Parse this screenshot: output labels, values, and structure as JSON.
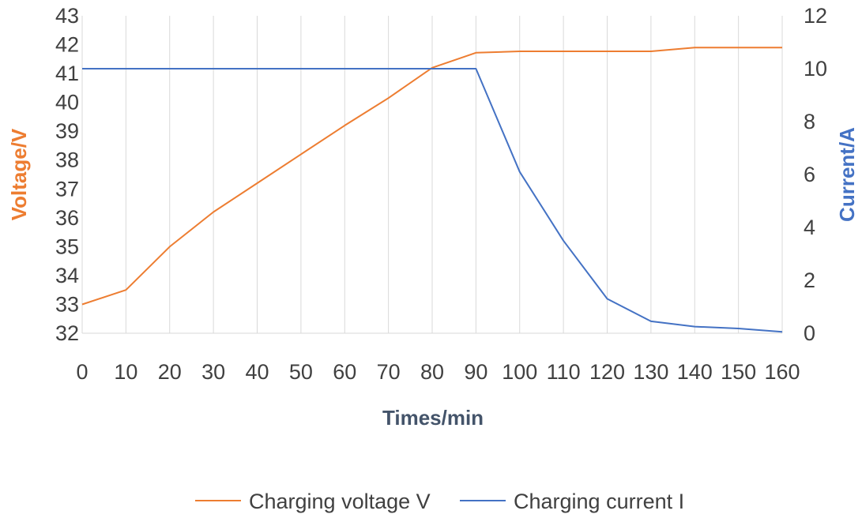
{
  "chart_data": {
    "type": "line",
    "xlabel": "Times/min",
    "ylabel_left": "Voltage/V",
    "ylabel_right": "Current/A",
    "x": [
      0,
      10,
      20,
      30,
      40,
      50,
      60,
      70,
      80,
      90,
      100,
      110,
      120,
      130,
      140,
      150,
      160
    ],
    "x_ticks": [
      "0",
      "10",
      "20",
      "30",
      "40",
      "50",
      "60",
      "70",
      "80",
      "90",
      "100",
      "110",
      "120",
      "130",
      "140",
      "150",
      "160"
    ],
    "y_left_lim": [
      32,
      43
    ],
    "y_left_ticks": [
      "32",
      "33",
      "34",
      "35",
      "36",
      "37",
      "38",
      "39",
      "40",
      "41",
      "42",
      "43"
    ],
    "y_right_lim": [
      0,
      12
    ],
    "y_right_ticks": [
      "0",
      "2",
      "4",
      "6",
      "8",
      "10",
      "12"
    ],
    "grid": "vertical",
    "legend_position": "bottom",
    "series": [
      {
        "name": "Charging voltage V",
        "axis": "left",
        "color": "#ED7D31",
        "values": [
          33.0,
          33.5,
          35.0,
          36.2,
          37.2,
          38.2,
          39.2,
          40.15,
          41.2,
          41.72,
          41.77,
          41.77,
          41.77,
          41.77,
          41.9,
          41.9,
          41.9
        ]
      },
      {
        "name": "Charging current I",
        "axis": "right",
        "color": "#4472C4",
        "values": [
          10,
          10,
          10,
          10,
          10,
          10,
          10,
          10,
          10,
          10,
          6.1,
          3.5,
          1.3,
          0.45,
          0.25,
          0.18,
          0.05
        ]
      }
    ]
  }
}
